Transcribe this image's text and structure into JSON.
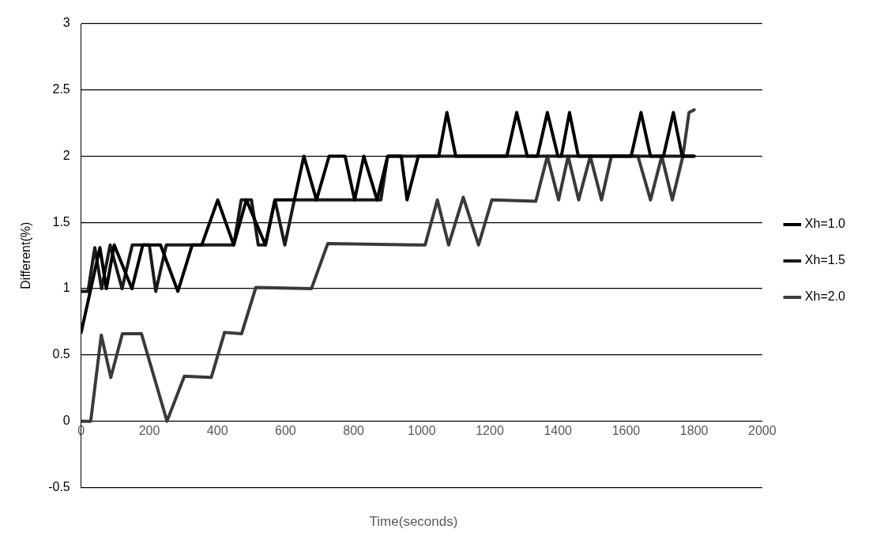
{
  "chart_data": {
    "type": "line",
    "xlabel": "Time(seconds)",
    "ylabel": "Different(%)",
    "xlim": [
      0,
      2000
    ],
    "xticks": [
      0,
      200,
      400,
      600,
      800,
      1000,
      1200,
      1400,
      1600,
      1800,
      2000
    ],
    "ylim": [
      -0.5,
      3
    ],
    "yticks": [
      -0.5,
      0,
      0.5,
      1,
      1.5,
      2,
      2.5,
      3
    ],
    "grid": "y",
    "legend": "right",
    "marker": "none",
    "line_style": "solid",
    "series": [
      {
        "name": "Xh=1.0",
        "color": "#000000",
        "x": [
          0,
          55,
          74,
          97,
          149,
          181,
          233,
          284,
          326,
          354,
          401,
          448,
          485,
          541,
          569,
          626,
          654,
          691,
          728,
          775,
          803,
          830,
          869,
          900,
          940,
          957,
          990,
          1050,
          1074,
          1100,
          1250,
          1279,
          1310,
          1340,
          1369,
          1400,
          1410,
          1434,
          1460,
          1615,
          1644,
          1672,
          1710,
          1739,
          1765,
          1800
        ],
        "values": [
          0.67,
          1.31,
          1.0,
          1.33,
          1.0,
          1.33,
          1.33,
          0.98,
          1.33,
          1.33,
          1.67,
          1.33,
          1.67,
          1.33,
          1.67,
          1.67,
          2.0,
          1.67,
          2.0,
          2.0,
          1.67,
          2.0,
          1.67,
          2.0,
          2.0,
          1.67,
          2.0,
          2.0,
          2.33,
          2.0,
          2.0,
          2.33,
          2.0,
          2.0,
          2.33,
          2.0,
          2.0,
          2.33,
          2.0,
          2.0,
          2.33,
          2.0,
          2.0,
          2.33,
          2.0,
          2.0
        ]
      },
      {
        "name": "Xh=1.5",
        "color": "#1a1a1a",
        "x": [
          0,
          20,
          40,
          60,
          85,
          120,
          150,
          200,
          219,
          250,
          354,
          448,
          470,
          500,
          520,
          541,
          569,
          598,
          626,
          850,
          880,
          900,
          1800
        ],
        "values": [
          0.98,
          0.98,
          1.31,
          1.0,
          1.33,
          1.0,
          1.33,
          1.33,
          0.98,
          1.33,
          1.33,
          1.33,
          1.67,
          1.67,
          1.33,
          1.33,
          1.67,
          1.33,
          1.67,
          1.67,
          1.67,
          2.0,
          2.0
        ]
      },
      {
        "name": "Xh=2.0",
        "color": "#3a3a3a",
        "x": [
          0,
          28,
          59,
          87,
          121,
          177,
          252,
          303,
          382,
          421,
          471,
          513,
          676,
          724,
          990,
          1010,
          1046,
          1079,
          1122,
          1167,
          1206,
          1335,
          1369,
          1402,
          1430,
          1461,
          1495,
          1528,
          1557,
          1635,
          1672,
          1705,
          1736,
          1767,
          1785,
          1800
        ],
        "values": [
          0,
          0,
          0.65,
          0.33,
          0.66,
          0.66,
          0,
          0.34,
          0.33,
          0.67,
          0.66,
          1.01,
          1.0,
          1.34,
          1.33,
          1.33,
          1.67,
          1.33,
          1.69,
          1.33,
          1.67,
          1.66,
          2.0,
          1.67,
          2.0,
          1.67,
          2.0,
          1.67,
          2.0,
          2.0,
          1.67,
          2.0,
          1.67,
          2.0,
          2.33,
          2.35
        ]
      }
    ]
  }
}
